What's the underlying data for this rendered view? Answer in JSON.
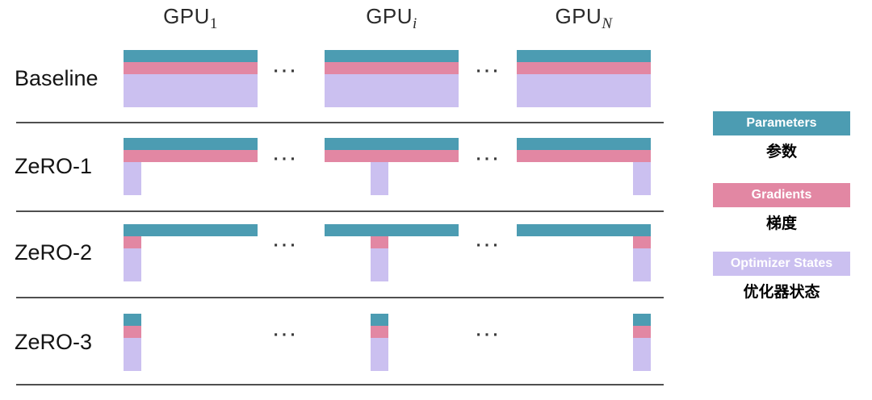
{
  "gpu_columns": [
    {
      "name": "GPU",
      "subscript": "1",
      "subscript_italic": false,
      "shard_position": "left"
    },
    {
      "name": "GPU",
      "subscript": "i",
      "subscript_italic": true,
      "shard_position": "middle"
    },
    {
      "name": "GPU",
      "subscript": "N",
      "subscript_italic": true,
      "shard_position": "right"
    }
  ],
  "ellipsis": "···",
  "rows": [
    {
      "label": "Baseline",
      "parameters": "full",
      "gradients": "full",
      "optimizer_states": "full"
    },
    {
      "label": "ZeRO-1",
      "parameters": "full",
      "gradients": "full",
      "optimizer_states": "sharded"
    },
    {
      "label": "ZeRO-2",
      "parameters": "full",
      "gradients": "sharded",
      "optimizer_states": "sharded"
    },
    {
      "label": "ZeRO-3",
      "parameters": "sharded",
      "gradients": "sharded",
      "optimizer_states": "sharded"
    }
  ],
  "legend": [
    {
      "label": "Parameters",
      "label_cn": "参数",
      "color": "#4C9CB2",
      "text_color": "#ffffff"
    },
    {
      "label": "Gradients",
      "label_cn": "梯度",
      "color": "#E287A3",
      "text_color": "#ffffff"
    },
    {
      "label": "Optimizer States",
      "label_cn": "优化器状态",
      "color": "#CBC0F0",
      "text_color": "#ffffff"
    }
  ],
  "colors": {
    "parameters": "#4C9CB2",
    "gradients": "#E287A3",
    "optimizer_states": "#CBC0F0",
    "divider": "#4f4f4f",
    "dots": "#3a3a3a"
  }
}
